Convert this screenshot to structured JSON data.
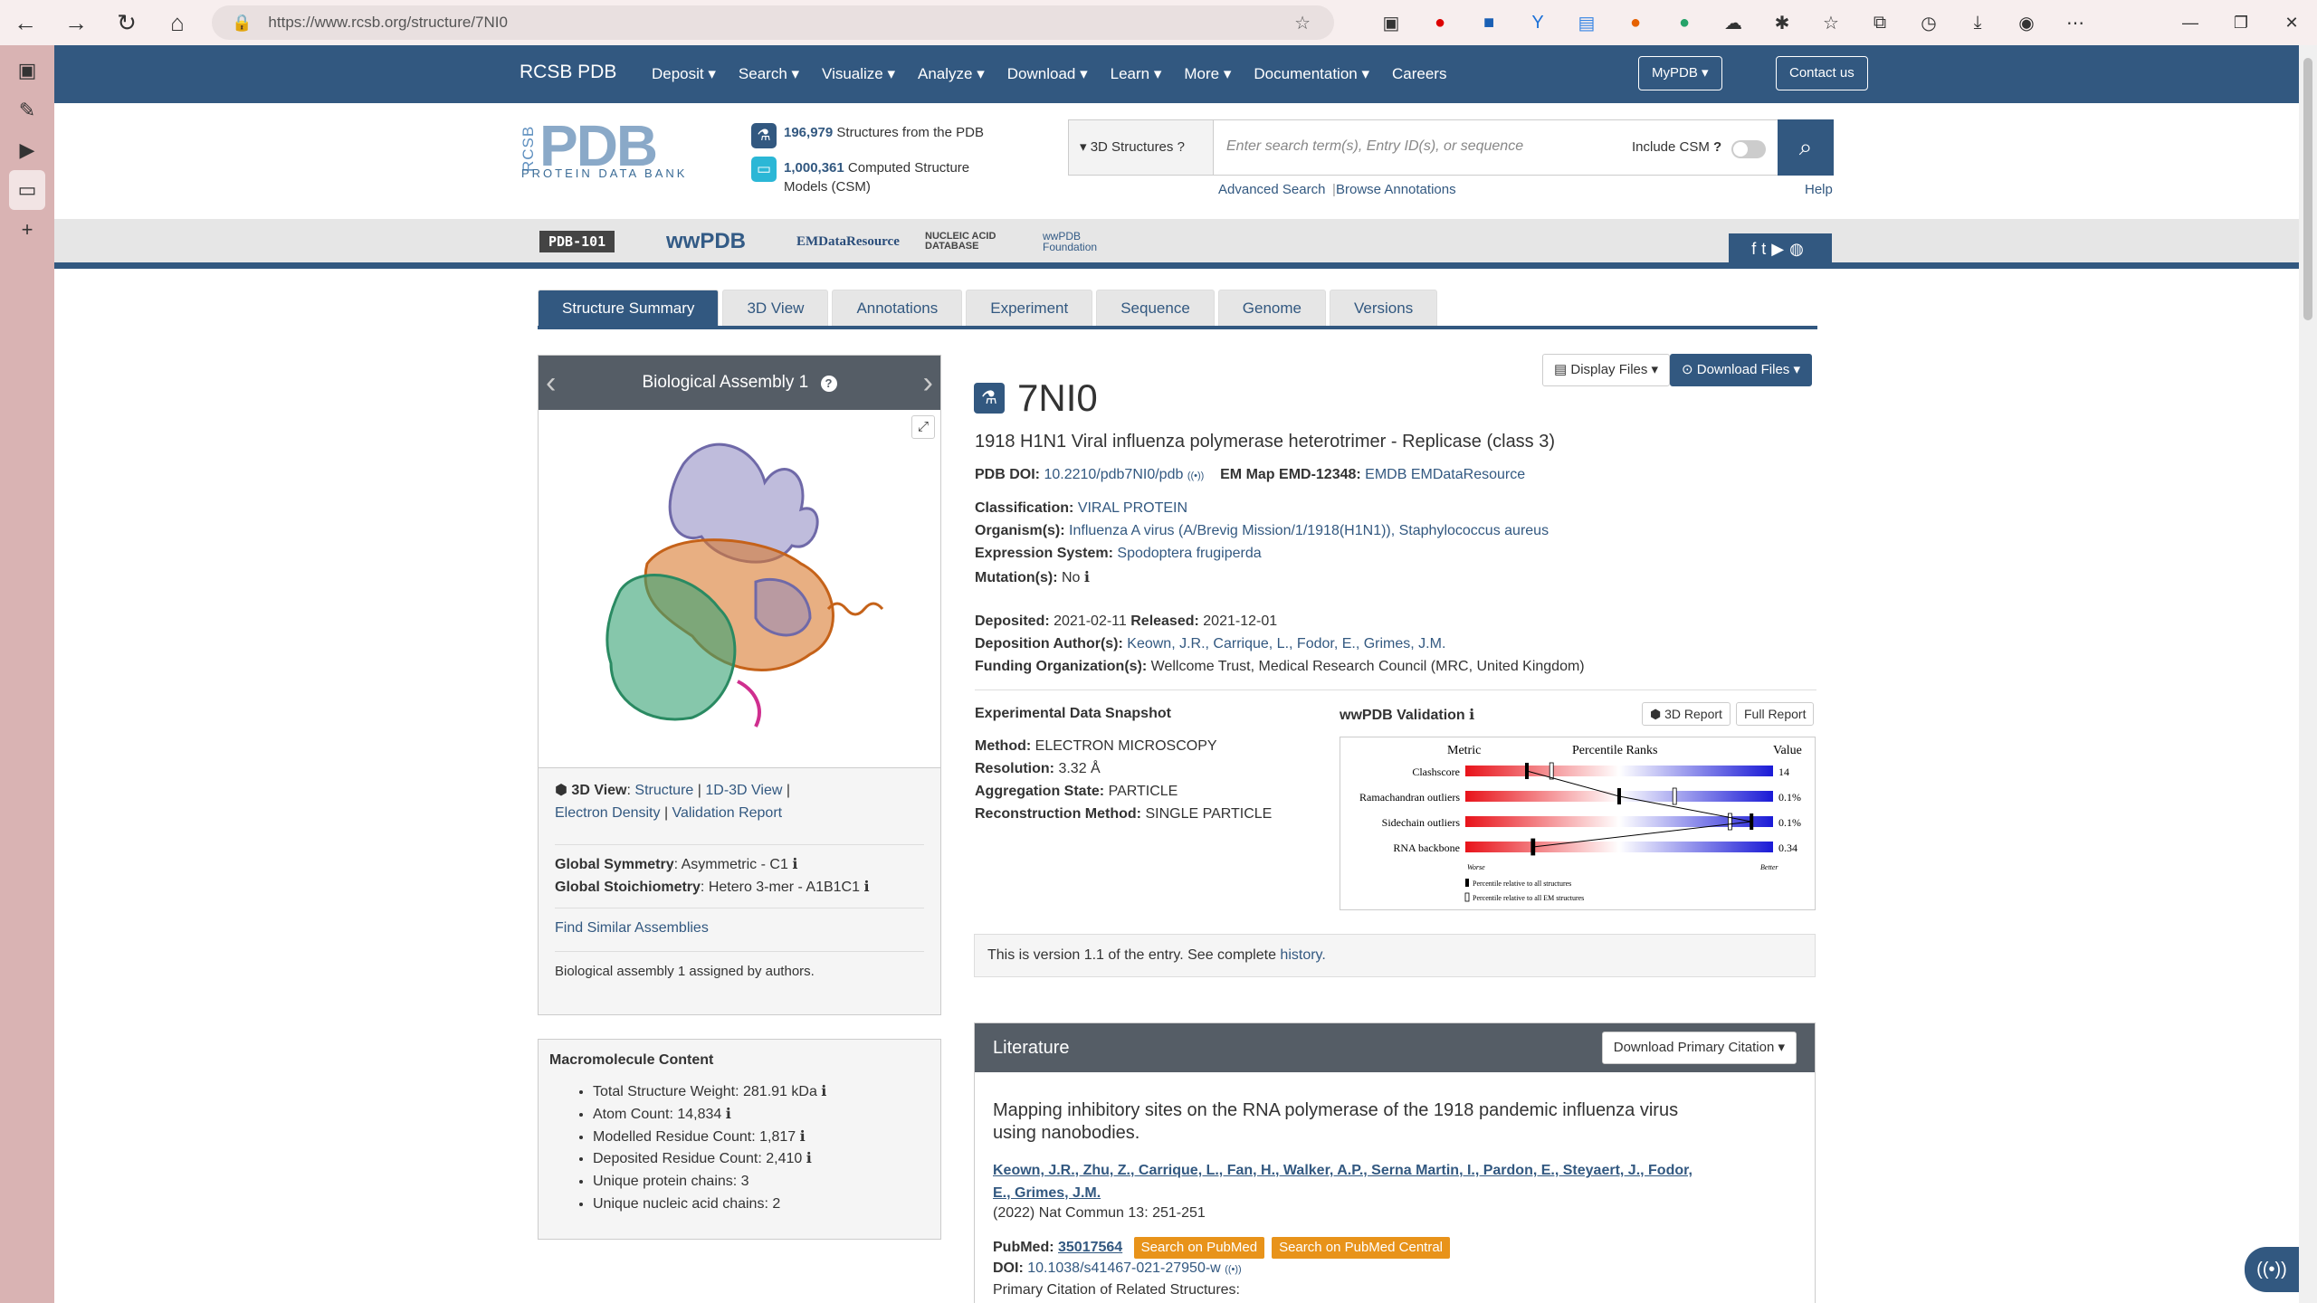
{
  "browser": {
    "url": "https://www.rcsb.org/structure/7NI0"
  },
  "nav": {
    "brand": "RCSB PDB",
    "items": [
      "Deposit ▾",
      "Search ▾",
      "Visualize ▾",
      "Analyze ▾",
      "Download ▾",
      "Learn ▾",
      "More ▾",
      "Documentation ▾",
      "Careers"
    ],
    "mypdb": "MyPDB ▾",
    "contact": "Contact us"
  },
  "logo": {
    "side": "RCSB",
    "main": "PDB",
    "sub": "PROTEIN DATA BANK"
  },
  "stats": {
    "structures_count": "196,979",
    "structures_label": "Structures from the PDB",
    "csm_count": "1,000,361",
    "csm_label": "Computed Structure",
    "csm_label2": "Models (CSM)"
  },
  "search": {
    "scope": "3D Structures",
    "placeholder": "Enter search term(s), Entry ID(s), or sequence",
    "include_csm": "Include CSM",
    "advanced": "Advanced Search",
    "browse": "Browse Annotations",
    "help": "Help"
  },
  "partners": [
    "PDB-101",
    "wwPDB",
    "EMDataResource",
    "NUCLEIC ACID DATABASE",
    "wwPDB Foundation"
  ],
  "tabs": [
    "Structure Summary",
    "3D View",
    "Annotations",
    "Experiment",
    "Sequence",
    "Genome",
    "Versions"
  ],
  "assembly": {
    "title": "Biological Assembly 1",
    "view_label": "3D View",
    "links": [
      "Structure",
      "1D-3D View",
      "Electron Density",
      "Validation Report"
    ],
    "symmetry_label": "Global Symmetry",
    "symmetry": "Asymmetric - C1",
    "stoich_label": "Global Stoichiometry",
    "stoich": "Hetero 3-mer - A1B1C1",
    "similar": "Find Similar Assemblies",
    "assigned": "Biological assembly 1 assigned by authors."
  },
  "macro": {
    "title": "Macromolecule Content",
    "items": [
      "Total Structure Weight: 281.91 kDa",
      "Atom Count: 14,834",
      "Modelled Residue Count: 1,817",
      "Deposited Residue Count: 2,410",
      "Unique protein chains: 3",
      "Unique nucleic acid chains: 2"
    ]
  },
  "entry": {
    "id": "7NI0",
    "title": "1918 H1N1 Viral influenza polymerase heterotrimer - Replicase (class 3)",
    "doi_label": "PDB DOI:",
    "doi": "10.2210/pdb7NI0/pdb",
    "emmap_label": "EM Map EMD-12348:",
    "emmap": "EMDB EMDataResource",
    "class_label": "Classification:",
    "class": "VIRAL PROTEIN",
    "org_label": "Organism(s):",
    "org": "Influenza A virus (A/Brevig Mission/1/1918(H1N1)), Staphylococcus aureus",
    "expr_label": "Expression System:",
    "expr": "Spodoptera frugiperda",
    "mut_label": "Mutation(s):",
    "mut": "No",
    "dep_label": "Deposited:",
    "dep": "2021-02-11",
    "rel_label": "Released:",
    "rel": "2021-12-01",
    "auth_label": "Deposition Author(s):",
    "auth": "Keown, J.R., Carrique, L., Fodor, E., Grimes, J.M.",
    "fund_label": "Funding Organization(s):",
    "fund": "Wellcome Trust, Medical Research Council (MRC, United Kingdom)",
    "display_files": "Display Files ▾",
    "download_files": "Download Files ▾"
  },
  "snapshot": {
    "title": "Experimental Data Snapshot",
    "method_label": "Method:",
    "method": "ELECTRON MICROSCOPY",
    "res_label": "Resolution:",
    "res": "3.32 Å",
    "agg_label": "Aggregation State:",
    "agg": "PARTICLE",
    "recon_label": "Reconstruction Method:",
    "recon": "SINGLE PARTICLE"
  },
  "validation": {
    "title": "wwPDB Validation",
    "report3d": "3D Report",
    "full": "Full Report",
    "hdr_metric": "Metric",
    "hdr_pct": "Percentile Ranks",
    "hdr_value": "Value",
    "rows": [
      {
        "name": "Clashscore",
        "value": "14",
        "all": 0.2,
        "em": 0.28
      },
      {
        "name": "Ramachandran outliers",
        "value": "0.1%",
        "all": 0.5,
        "em": 0.68
      },
      {
        "name": "Sidechain outliers",
        "value": "0.1%",
        "all": 0.93,
        "em": 0.86
      },
      {
        "name": "RNA backbone",
        "value": "0.34",
        "all": 0.22,
        "em": 0.22
      }
    ],
    "worse": "Worse",
    "better": "Better",
    "leg1": "Percentile relative to all structures",
    "leg2": "Percentile relative to all EM structures"
  },
  "version": {
    "text": "This is version 1.1 of the entry. See complete",
    "link": "history."
  },
  "literature": {
    "title": "Literature",
    "dl": "Download Primary Citation ▾",
    "paper_title1": "Mapping inhibitory sites on the RNA polymerase of the 1918 pandemic influenza virus",
    "paper_title2": "using nanobodies.",
    "authors1": "Keown, J.R., Zhu, Z., Carrique, L., Fan, H., Walker, A.P., Serna Martin, I., Pardon, E., Steyaert, J., Fodor,",
    "authors2": "E., Grimes, J.M.",
    "journal": "(2022) Nat Commun 13: 251-251",
    "pubmed_label": "PubMed:",
    "pubmed": "35017564",
    "pm_btn": "Search on PubMed",
    "pmc_btn": "Search on PubMed Central",
    "doi_label": "DOI:",
    "doi": "10.1038/s41467-021-27950-w",
    "related": "Primary Citation of Related Structures:"
  }
}
